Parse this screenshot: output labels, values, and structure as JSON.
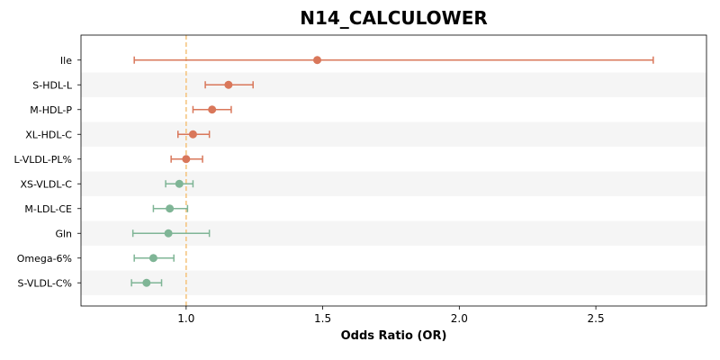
{
  "chart_data": {
    "type": "forest",
    "title": "N14_CALCULOWER",
    "xlabel": "Odds Ratio (OR)",
    "ylabel": "",
    "xlim": [
      0.615,
      2.905
    ],
    "xticks": [
      "1.0",
      "1.5",
      "2.0",
      "2.5"
    ],
    "reference_line": 1.0,
    "reference_color": "#f5c27a",
    "colors": {
      "positive": "#d9775a",
      "negative": "#7fb596",
      "band": "#f5f5f5",
      "axis": "#000000"
    },
    "rows": [
      {
        "label": "Ile",
        "or": 1.48,
        "lo": 0.81,
        "hi": 2.71,
        "group": "positive"
      },
      {
        "label": "S-HDL-L",
        "or": 1.155,
        "lo": 1.07,
        "hi": 1.245,
        "group": "positive"
      },
      {
        "label": "M-HDL-P",
        "or": 1.095,
        "lo": 1.025,
        "hi": 1.165,
        "group": "positive"
      },
      {
        "label": "XL-HDL-C",
        "or": 1.025,
        "lo": 0.97,
        "hi": 1.085,
        "group": "positive"
      },
      {
        "label": "L-VLDL-PL%",
        "or": 1.0,
        "lo": 0.945,
        "hi": 1.06,
        "group": "positive"
      },
      {
        "label": "XS-VLDL-C",
        "or": 0.975,
        "lo": 0.925,
        "hi": 1.025,
        "group": "negative"
      },
      {
        "label": "M-LDL-CE",
        "or": 0.94,
        "lo": 0.88,
        "hi": 1.005,
        "group": "negative"
      },
      {
        "label": "Gln",
        "or": 0.935,
        "lo": 0.805,
        "hi": 1.085,
        "group": "negative"
      },
      {
        "label": "Omega-6%",
        "or": 0.88,
        "lo": 0.81,
        "hi": 0.955,
        "group": "negative"
      },
      {
        "label": "S-VLDL-C%",
        "or": 0.855,
        "lo": 0.8,
        "hi": 0.91,
        "group": "negative"
      }
    ]
  }
}
